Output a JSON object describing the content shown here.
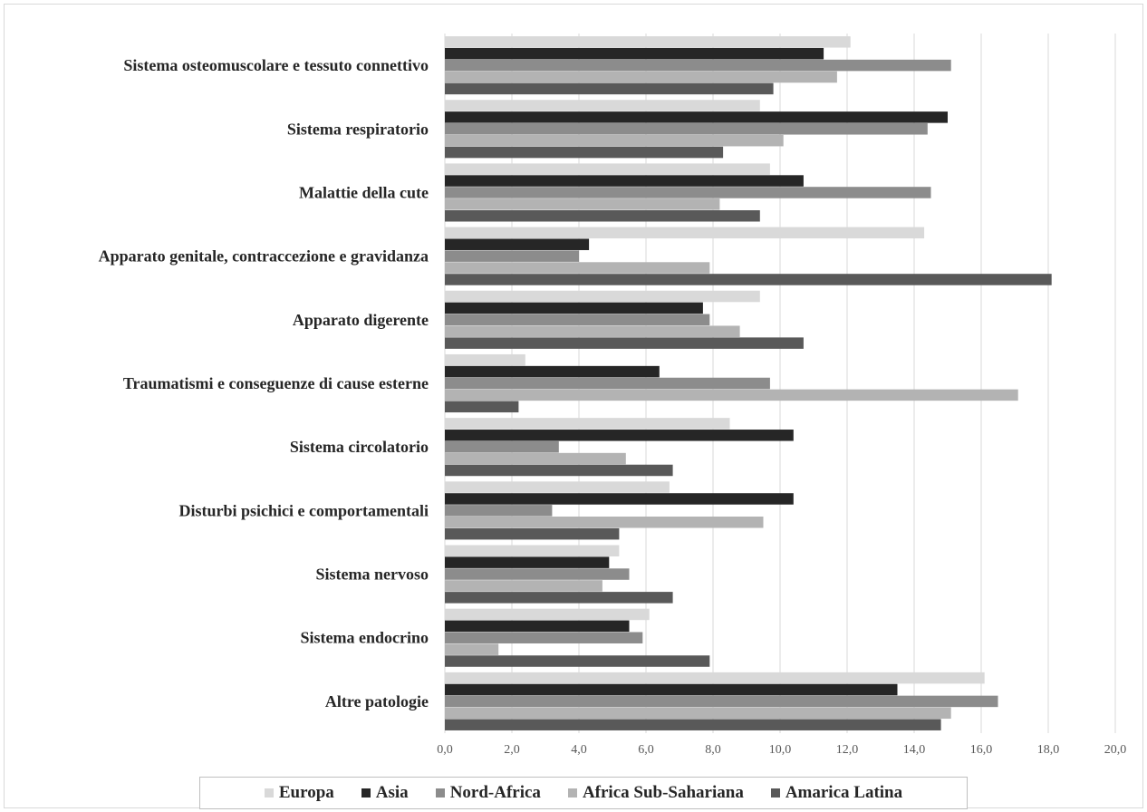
{
  "chart_data": {
    "type": "bar",
    "orientation": "horizontal",
    "categories": [
      "Sistema osteomuscolare e tessuto connettivo",
      "Sistema respiratorio",
      "Malattie della cute",
      "Apparato genitale, contraccezione e gravidanza",
      "Apparato digerente",
      "Traumatismi e conseguenze di cause esterne",
      "Sistema circolatorio",
      "Disturbi psichici e comportamentali",
      "Sistema nervoso",
      "Sistema endocrino",
      "Altre patologie"
    ],
    "series": [
      {
        "name": "Europa",
        "color": "#d9d9d9",
        "values": [
          12.1,
          9.4,
          9.7,
          14.3,
          9.4,
          2.4,
          8.5,
          6.7,
          5.2,
          6.1,
          16.1
        ]
      },
      {
        "name": "Asia",
        "color": "#262626",
        "values": [
          11.3,
          15.0,
          10.7,
          4.3,
          7.7,
          6.4,
          10.4,
          10.4,
          4.9,
          5.5,
          13.5
        ]
      },
      {
        "name": "Nord-Africa",
        "color": "#8c8c8c",
        "values": [
          15.1,
          14.4,
          14.5,
          4.0,
          7.9,
          9.7,
          3.4,
          3.2,
          5.5,
          5.9,
          16.5
        ]
      },
      {
        "name": "Africa Sub-Sahariana",
        "color": "#b3b3b3",
        "values": [
          11.7,
          10.1,
          8.2,
          7.9,
          8.8,
          17.1,
          5.4,
          9.5,
          4.7,
          1.6,
          15.1
        ]
      },
      {
        "name": "Amarica Latina",
        "color": "#595959",
        "values": [
          9.8,
          8.3,
          9.4,
          18.1,
          10.7,
          2.2,
          6.8,
          5.2,
          6.8,
          7.9,
          14.8
        ]
      }
    ],
    "xlim": [
      0,
      20
    ],
    "xticks": [
      "0,0",
      "2,0",
      "4,0",
      "6,0",
      "8,0",
      "10,0",
      "12,0",
      "14,0",
      "16,0",
      "18,0",
      "20,0"
    ],
    "grid": "vertical",
    "legend_position": "bottom"
  }
}
